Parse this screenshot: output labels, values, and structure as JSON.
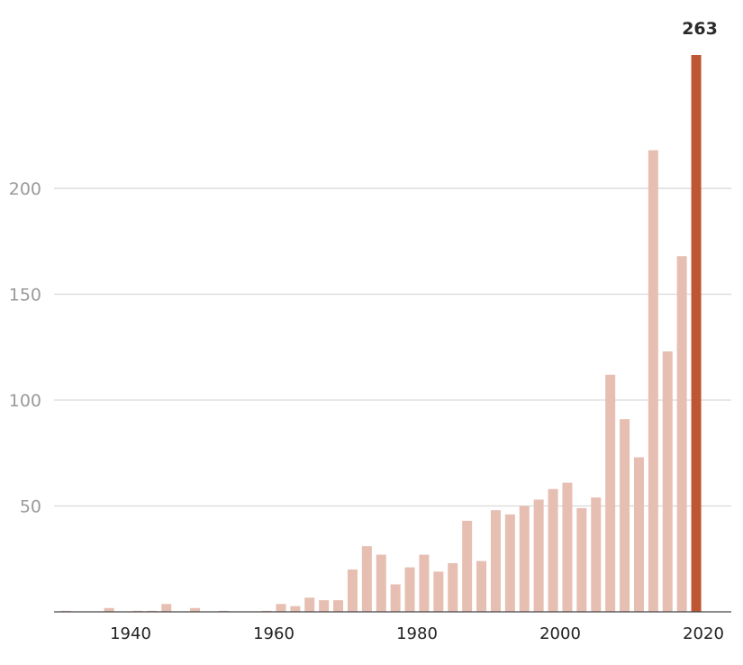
{
  "chart_data": {
    "type": "bar",
    "title": "",
    "xlabel": "",
    "ylabel": "",
    "ylim": [
      0,
      263
    ],
    "yticks": [
      50,
      100,
      150,
      200
    ],
    "xticks": [
      1940,
      1960,
      1980,
      2000,
      2020
    ],
    "grid": true,
    "colors": {
      "bar": "#e6bfb2",
      "highlight": "#bf5633"
    },
    "annotation": {
      "x": 2019,
      "label": "263"
    },
    "x": [
      1931,
      1933,
      1935,
      1937,
      1939,
      1941,
      1943,
      1945,
      1947,
      1949,
      1951,
      1953,
      1955,
      1957,
      1959,
      1961,
      1963,
      1965,
      1967,
      1969,
      1971,
      1973,
      1975,
      1977,
      1979,
      1981,
      1983,
      1985,
      1987,
      1989,
      1991,
      1993,
      1995,
      1997,
      1999,
      2001,
      2003,
      2005,
      2007,
      2009,
      2011,
      2013,
      2015,
      2017,
      2019
    ],
    "values": [
      0.5,
      0,
      0,
      1.8,
      0,
      0.5,
      0.5,
      3.7,
      0,
      1.8,
      0,
      0.5,
      0,
      0,
      0.5,
      3.7,
      2.7,
      6.7,
      5.5,
      5.5,
      20,
      31,
      27,
      13,
      21,
      27,
      19,
      23,
      43,
      24,
      48,
      46,
      50,
      53,
      58,
      61,
      49,
      54,
      112,
      91,
      73,
      218,
      123,
      168,
      263
    ]
  }
}
